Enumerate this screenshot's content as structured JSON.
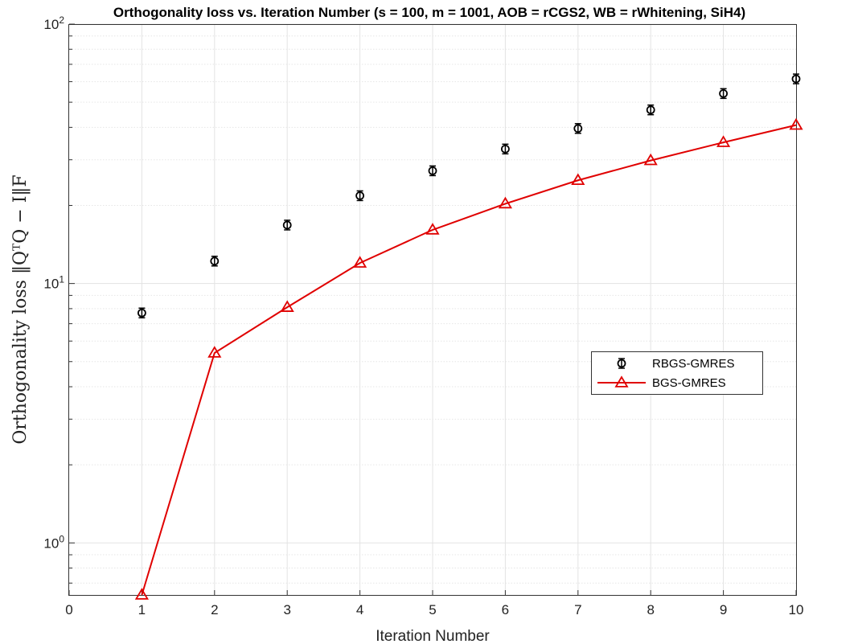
{
  "chart_data": {
    "type": "line",
    "title": "Orthogonality loss vs. Iteration Number (s = 100, m = 1001, AOB = rCGS2, WB = rWhitening, SiH4)",
    "xlabel": "Iteration Number",
    "ylabel": "Orthogonality loss ‖QᵀQ − I‖F",
    "xlim": [
      0,
      10
    ],
    "ylim": [
      0.63,
      100
    ],
    "yscale": "log",
    "grid": true,
    "legend_position": "center-right",
    "x_ticks": [
      "0",
      "1",
      "2",
      "3",
      "4",
      "5",
      "6",
      "7",
      "8",
      "9",
      "10"
    ],
    "y_ticks": [
      {
        "base": "10",
        "exp": "0",
        "value": 1
      },
      {
        "base": "10",
        "exp": "1",
        "value": 10
      },
      {
        "base": "10",
        "exp": "2",
        "value": 100
      }
    ],
    "x": [
      1,
      2,
      3,
      4,
      5,
      6,
      7,
      8,
      9,
      10
    ],
    "series": [
      {
        "name": "RBGS-GMRES",
        "style": "markers",
        "marker": "circle-errorbar",
        "color": "#000000",
        "values": [
          7.7,
          12.2,
          16.8,
          21.8,
          27.2,
          33.0,
          39.6,
          46.7,
          54.0,
          61.5
        ]
      },
      {
        "name": "BGS-GMRES",
        "style": "line",
        "marker": "triangle",
        "color": "#e00000",
        "values": [
          0.63,
          5.4,
          8.1,
          12.0,
          16.1,
          20.3,
          25.0,
          29.8,
          35.0,
          40.8
        ]
      }
    ]
  }
}
